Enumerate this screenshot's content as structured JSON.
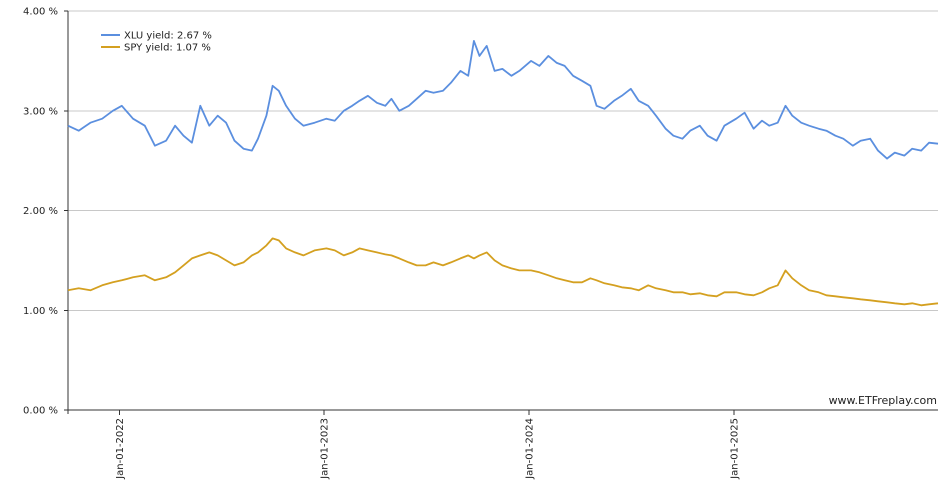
{
  "chart_data": {
    "type": "line",
    "x_start": "2021-10-01",
    "x_end": "2025-12-31",
    "ylim": [
      0,
      4
    ],
    "y_ticks": [
      0,
      1,
      2,
      3,
      4
    ],
    "y_tick_labels": [
      "0.00 %",
      "1.00 %",
      "2.00 %",
      "3.00 %",
      "4.00 %"
    ],
    "x_ticks": [
      "2022-01-01",
      "2023-01-01",
      "2024-01-01",
      "2025-01-01"
    ],
    "x_tick_labels": [
      "Jan-01-2022",
      "Jan-01-2023",
      "Jan-01-2024",
      "Jan-01-2025"
    ],
    "grid": true,
    "legend_position": "top-left",
    "credit": "www.ETFreplay.com",
    "series": [
      {
        "name": "XLU yield: 2.67 %",
        "color": "#5b8fdf",
        "points": [
          [
            "2021-10-01",
            2.85
          ],
          [
            "2021-10-20",
            2.8
          ],
          [
            "2021-11-10",
            2.88
          ],
          [
            "2021-12-01",
            2.92
          ],
          [
            "2021-12-20",
            3.0
          ],
          [
            "2022-01-05",
            3.05
          ],
          [
            "2022-01-25",
            2.92
          ],
          [
            "2022-02-15",
            2.85
          ],
          [
            "2022-03-05",
            2.65
          ],
          [
            "2022-03-25",
            2.7
          ],
          [
            "2022-04-10",
            2.85
          ],
          [
            "2022-04-25",
            2.75
          ],
          [
            "2022-05-10",
            2.68
          ],
          [
            "2022-05-25",
            3.05
          ],
          [
            "2022-06-10",
            2.85
          ],
          [
            "2022-06-25",
            2.95
          ],
          [
            "2022-07-10",
            2.88
          ],
          [
            "2022-07-25",
            2.7
          ],
          [
            "2022-08-10",
            2.62
          ],
          [
            "2022-08-25",
            2.6
          ],
          [
            "2022-09-05",
            2.72
          ],
          [
            "2022-09-20",
            2.95
          ],
          [
            "2022-10-01",
            3.25
          ],
          [
            "2022-10-12",
            3.2
          ],
          [
            "2022-10-25",
            3.05
          ],
          [
            "2022-11-10",
            2.92
          ],
          [
            "2022-11-25",
            2.85
          ],
          [
            "2022-12-15",
            2.88
          ],
          [
            "2023-01-05",
            2.92
          ],
          [
            "2023-01-20",
            2.9
          ],
          [
            "2023-02-05",
            3.0
          ],
          [
            "2023-02-20",
            3.05
          ],
          [
            "2023-03-05",
            3.1
          ],
          [
            "2023-03-20",
            3.15
          ],
          [
            "2023-04-05",
            3.08
          ],
          [
            "2023-04-20",
            3.05
          ],
          [
            "2023-05-01",
            3.12
          ],
          [
            "2023-05-15",
            3.0
          ],
          [
            "2023-06-01",
            3.05
          ],
          [
            "2023-06-15",
            3.12
          ],
          [
            "2023-07-01",
            3.2
          ],
          [
            "2023-07-15",
            3.18
          ],
          [
            "2023-08-01",
            3.2
          ],
          [
            "2023-08-15",
            3.28
          ],
          [
            "2023-09-01",
            3.4
          ],
          [
            "2023-09-15",
            3.35
          ],
          [
            "2023-09-25",
            3.7
          ],
          [
            "2023-10-05",
            3.55
          ],
          [
            "2023-10-18",
            3.65
          ],
          [
            "2023-11-01",
            3.4
          ],
          [
            "2023-11-15",
            3.42
          ],
          [
            "2023-12-01",
            3.35
          ],
          [
            "2023-12-15",
            3.4
          ],
          [
            "2024-01-05",
            3.5
          ],
          [
            "2024-01-20",
            3.45
          ],
          [
            "2024-02-05",
            3.55
          ],
          [
            "2024-02-20",
            3.48
          ],
          [
            "2024-03-05",
            3.45
          ],
          [
            "2024-03-20",
            3.35
          ],
          [
            "2024-04-05",
            3.3
          ],
          [
            "2024-04-20",
            3.25
          ],
          [
            "2024-05-01",
            3.05
          ],
          [
            "2024-05-15",
            3.02
          ],
          [
            "2024-06-01",
            3.1
          ],
          [
            "2024-06-15",
            3.15
          ],
          [
            "2024-07-01",
            3.22
          ],
          [
            "2024-07-15",
            3.1
          ],
          [
            "2024-08-01",
            3.05
          ],
          [
            "2024-08-15",
            2.95
          ],
          [
            "2024-09-01",
            2.82
          ],
          [
            "2024-09-15",
            2.75
          ],
          [
            "2024-10-01",
            2.72
          ],
          [
            "2024-10-15",
            2.8
          ],
          [
            "2024-11-01",
            2.85
          ],
          [
            "2024-11-15",
            2.75
          ],
          [
            "2024-12-01",
            2.7
          ],
          [
            "2024-12-15",
            2.85
          ],
          [
            "2025-01-05",
            2.92
          ],
          [
            "2025-01-20",
            2.98
          ],
          [
            "2025-02-05",
            2.82
          ],
          [
            "2025-02-20",
            2.9
          ],
          [
            "2025-03-05",
            2.85
          ],
          [
            "2025-03-20",
            2.88
          ],
          [
            "2025-04-03",
            3.05
          ],
          [
            "2025-04-15",
            2.95
          ],
          [
            "2025-05-01",
            2.88
          ],
          [
            "2025-05-15",
            2.85
          ],
          [
            "2025-06-01",
            2.82
          ],
          [
            "2025-06-15",
            2.8
          ],
          [
            "2025-07-01",
            2.75
          ],
          [
            "2025-07-15",
            2.72
          ],
          [
            "2025-08-01",
            2.65
          ],
          [
            "2025-08-15",
            2.7
          ],
          [
            "2025-09-01",
            2.72
          ],
          [
            "2025-09-15",
            2.6
          ],
          [
            "2025-10-01",
            2.52
          ],
          [
            "2025-10-15",
            2.58
          ],
          [
            "2025-11-01",
            2.55
          ],
          [
            "2025-11-15",
            2.62
          ],
          [
            "2025-12-01",
            2.6
          ],
          [
            "2025-12-15",
            2.68
          ],
          [
            "2025-12-31",
            2.67
          ]
        ]
      },
      {
        "name": "SPY yield: 1.07 %",
        "color": "#d4a020",
        "points": [
          [
            "2021-10-01",
            1.2
          ],
          [
            "2021-10-20",
            1.22
          ],
          [
            "2021-11-10",
            1.2
          ],
          [
            "2021-12-01",
            1.25
          ],
          [
            "2021-12-20",
            1.28
          ],
          [
            "2022-01-05",
            1.3
          ],
          [
            "2022-01-25",
            1.33
          ],
          [
            "2022-02-15",
            1.35
          ],
          [
            "2022-03-05",
            1.3
          ],
          [
            "2022-03-25",
            1.33
          ],
          [
            "2022-04-10",
            1.38
          ],
          [
            "2022-04-25",
            1.45
          ],
          [
            "2022-05-10",
            1.52
          ],
          [
            "2022-05-25",
            1.55
          ],
          [
            "2022-06-10",
            1.58
          ],
          [
            "2022-06-25",
            1.55
          ],
          [
            "2022-07-10",
            1.5
          ],
          [
            "2022-07-25",
            1.45
          ],
          [
            "2022-08-10",
            1.48
          ],
          [
            "2022-08-25",
            1.55
          ],
          [
            "2022-09-05",
            1.58
          ],
          [
            "2022-09-20",
            1.65
          ],
          [
            "2022-10-01",
            1.72
          ],
          [
            "2022-10-12",
            1.7
          ],
          [
            "2022-10-25",
            1.62
          ],
          [
            "2022-11-10",
            1.58
          ],
          [
            "2022-11-25",
            1.55
          ],
          [
            "2022-12-15",
            1.6
          ],
          [
            "2023-01-05",
            1.62
          ],
          [
            "2023-01-20",
            1.6
          ],
          [
            "2023-02-05",
            1.55
          ],
          [
            "2023-02-20",
            1.58
          ],
          [
            "2023-03-05",
            1.62
          ],
          [
            "2023-03-20",
            1.6
          ],
          [
            "2023-04-05",
            1.58
          ],
          [
            "2023-04-20",
            1.56
          ],
          [
            "2023-05-01",
            1.55
          ],
          [
            "2023-05-15",
            1.52
          ],
          [
            "2023-06-01",
            1.48
          ],
          [
            "2023-06-15",
            1.45
          ],
          [
            "2023-07-01",
            1.45
          ],
          [
            "2023-07-15",
            1.48
          ],
          [
            "2023-08-01",
            1.45
          ],
          [
            "2023-08-15",
            1.48
          ],
          [
            "2023-09-01",
            1.52
          ],
          [
            "2023-09-15",
            1.55
          ],
          [
            "2023-09-25",
            1.52
          ],
          [
            "2023-10-05",
            1.55
          ],
          [
            "2023-10-18",
            1.58
          ],
          [
            "2023-11-01",
            1.5
          ],
          [
            "2023-11-15",
            1.45
          ],
          [
            "2023-12-01",
            1.42
          ],
          [
            "2023-12-15",
            1.4
          ],
          [
            "2024-01-05",
            1.4
          ],
          [
            "2024-01-20",
            1.38
          ],
          [
            "2024-02-05",
            1.35
          ],
          [
            "2024-02-20",
            1.32
          ],
          [
            "2024-03-05",
            1.3
          ],
          [
            "2024-03-20",
            1.28
          ],
          [
            "2024-04-05",
            1.28
          ],
          [
            "2024-04-20",
            1.32
          ],
          [
            "2024-05-01",
            1.3
          ],
          [
            "2024-05-15",
            1.27
          ],
          [
            "2024-06-01",
            1.25
          ],
          [
            "2024-06-15",
            1.23
          ],
          [
            "2024-07-01",
            1.22
          ],
          [
            "2024-07-15",
            1.2
          ],
          [
            "2024-08-01",
            1.25
          ],
          [
            "2024-08-15",
            1.22
          ],
          [
            "2024-09-01",
            1.2
          ],
          [
            "2024-09-15",
            1.18
          ],
          [
            "2024-10-01",
            1.18
          ],
          [
            "2024-10-15",
            1.16
          ],
          [
            "2024-11-01",
            1.17
          ],
          [
            "2024-11-15",
            1.15
          ],
          [
            "2024-12-01",
            1.14
          ],
          [
            "2024-12-15",
            1.18
          ],
          [
            "2025-01-05",
            1.18
          ],
          [
            "2025-01-20",
            1.16
          ],
          [
            "2025-02-05",
            1.15
          ],
          [
            "2025-02-20",
            1.18
          ],
          [
            "2025-03-05",
            1.22
          ],
          [
            "2025-03-20",
            1.25
          ],
          [
            "2025-04-03",
            1.4
          ],
          [
            "2025-04-15",
            1.32
          ],
          [
            "2025-05-01",
            1.25
          ],
          [
            "2025-05-15",
            1.2
          ],
          [
            "2025-06-01",
            1.18
          ],
          [
            "2025-06-15",
            1.15
          ],
          [
            "2025-07-01",
            1.14
          ],
          [
            "2025-07-15",
            1.13
          ],
          [
            "2025-08-01",
            1.12
          ],
          [
            "2025-08-15",
            1.11
          ],
          [
            "2025-09-01",
            1.1
          ],
          [
            "2025-09-15",
            1.09
          ],
          [
            "2025-10-01",
            1.08
          ],
          [
            "2025-10-15",
            1.07
          ],
          [
            "2025-11-01",
            1.06
          ],
          [
            "2025-11-15",
            1.07
          ],
          [
            "2025-12-01",
            1.05
          ],
          [
            "2025-12-15",
            1.06
          ],
          [
            "2025-12-31",
            1.07
          ]
        ]
      }
    ]
  }
}
